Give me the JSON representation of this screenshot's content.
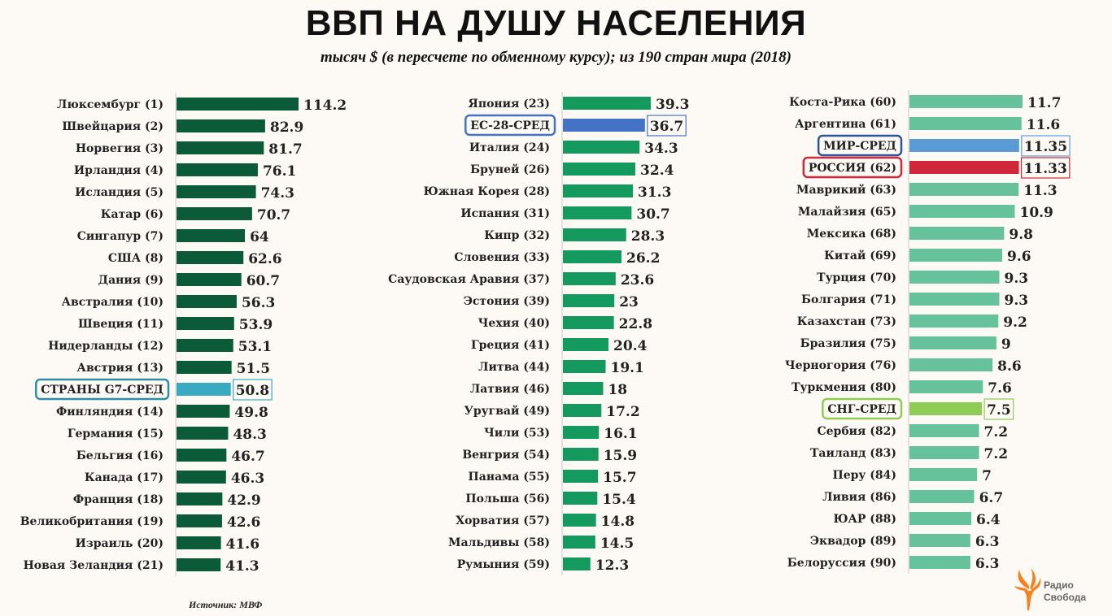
{
  "title": "ВВП НА ДУШУ НАСЕЛЕНИЯ",
  "subtitle": "тысяч $ (в пересчете по обменному курсу); из 190 стран мира (2018)",
  "source": "Источник: МВФ",
  "logo": {
    "line1": "Радио",
    "line2": "Свобода",
    "color": "#f58220"
  },
  "chart_data": [
    {
      "type": "bar",
      "orientation": "horizontal",
      "xlim": [
        0,
        114.2
      ],
      "color": "#0b5b38",
      "categories": [
        "Люксембург (1)",
        "Швейцария (2)",
        "Норвегия (3)",
        "Ирландия (4)",
        "Исландия (5)",
        "Катар (6)",
        "Сингапур (7)",
        "США (8)",
        "Дания (9)",
        "Австралия (10)",
        "Швеция (11)",
        "Нидерланды (12)",
        "Австрия (13)",
        "СТРАНЫ G7-СРЕД",
        "Финляндия (14)",
        "Германия (15)",
        "Бельгия (16)",
        "Канада (17)",
        "Франция (18)",
        "Великобритания (19)",
        "Израиль (20)",
        "Новая Зеландия (21)"
      ],
      "values": [
        114.2,
        82.9,
        81.7,
        76.1,
        74.3,
        70.7,
        64,
        62.6,
        60.7,
        56.3,
        53.9,
        53.1,
        51.5,
        50.8,
        49.8,
        48.3,
        46.7,
        46.3,
        42.9,
        42.6,
        41.6,
        41.3
      ],
      "labels": [
        "114.2",
        "82.9",
        "81.7",
        "76.1",
        "74.3",
        "70.7",
        "64",
        "62.6",
        "60.7",
        "56.3",
        "53.9",
        "53.1",
        "51.5",
        "50.8",
        "49.8",
        "48.3",
        "46.7",
        "46.3",
        "42.9",
        "42.6",
        "41.6",
        "41.3"
      ],
      "highlights": {
        "13": "#3aa9c2"
      }
    },
    {
      "type": "bar",
      "orientation": "horizontal",
      "xlim": [
        0,
        39.3
      ],
      "color": "#14995f",
      "categories": [
        "Япония (23)",
        "ЕС-28-СРЕД",
        "Италия (24)",
        "Бруней (26)",
        "Южная Корея (28)",
        "Испания (31)",
        "Кипр (32)",
        "Словения (33)",
        "Саудовская Аравия (37)",
        "Эстония (39)",
        "Чехия (40)",
        "Греция (41)",
        "Литва (44)",
        "Латвия (46)",
        "Уругвай (49)",
        "Чили (53)",
        "Венгрия (54)",
        "Панама (55)",
        "Польша (56)",
        "Хорватия (57)",
        "Мальдивы (58)",
        "Румыния (59)"
      ],
      "values": [
        39.3,
        36.7,
        34.3,
        32.4,
        31.3,
        30.7,
        28.3,
        26.2,
        23.6,
        23,
        22.8,
        20.4,
        19.1,
        18,
        17.2,
        16.1,
        15.9,
        15.7,
        15.4,
        14.8,
        14.5,
        12.3
      ],
      "labels": [
        "39.3",
        "36.7",
        "34.3",
        "32.4",
        "31.3",
        "30.7",
        "28.3",
        "26.2",
        "23.6",
        "23",
        "22.8",
        "20.4",
        "19.1",
        "18",
        "17.2",
        "16.1",
        "15.9",
        "15.7",
        "15.4",
        "14.8",
        "14.5",
        "12.3"
      ],
      "highlights": {
        "1": "#4472c4"
      }
    },
    {
      "type": "bar",
      "orientation": "horizontal",
      "xlim": [
        0,
        11.7
      ],
      "color": "#66c29b",
      "categories": [
        "Коста-Рика (60)",
        "Аргентина (61)",
        "МИР-СРЕД",
        "РОССИЯ (62)",
        "Маврикий (63)",
        "Малайзия (65)",
        "Мексика (68)",
        "Китай (69)",
        "Турция (70)",
        "Болгария (71)",
        "Казахстан (73)",
        "Бразилия (75)",
        "Черногория (76)",
        "Туркмения (80)",
        "СНГ-СРЕД",
        "Сербия (82)",
        "Таиланд (83)",
        "Перу (84)",
        "Ливия (86)",
        "ЮАР (88)",
        "Эквадор (89)",
        "Белоруссия (90)"
      ],
      "values": [
        11.7,
        11.6,
        11.35,
        11.33,
        11.3,
        10.9,
        9.8,
        9.6,
        9.3,
        9.3,
        9.2,
        9,
        8.6,
        7.6,
        7.5,
        7.2,
        7.2,
        7,
        6.7,
        6.4,
        6.3,
        6.3
      ],
      "labels": [
        "11.7",
        "11.6",
        "11.35",
        "11.33",
        "11.3",
        "10.9",
        "9.8",
        "9.6",
        "9.3",
        "9.3",
        "9.2",
        "9",
        "8.6",
        "7.6",
        "7.5",
        "7.2",
        "7.2",
        "7",
        "6.7",
        "6.4",
        "6.3",
        "6.3"
      ],
      "highlights": {
        "2": "#5b9bd5",
        "3": "#d0283a",
        "14": "#8fcc55"
      }
    }
  ]
}
